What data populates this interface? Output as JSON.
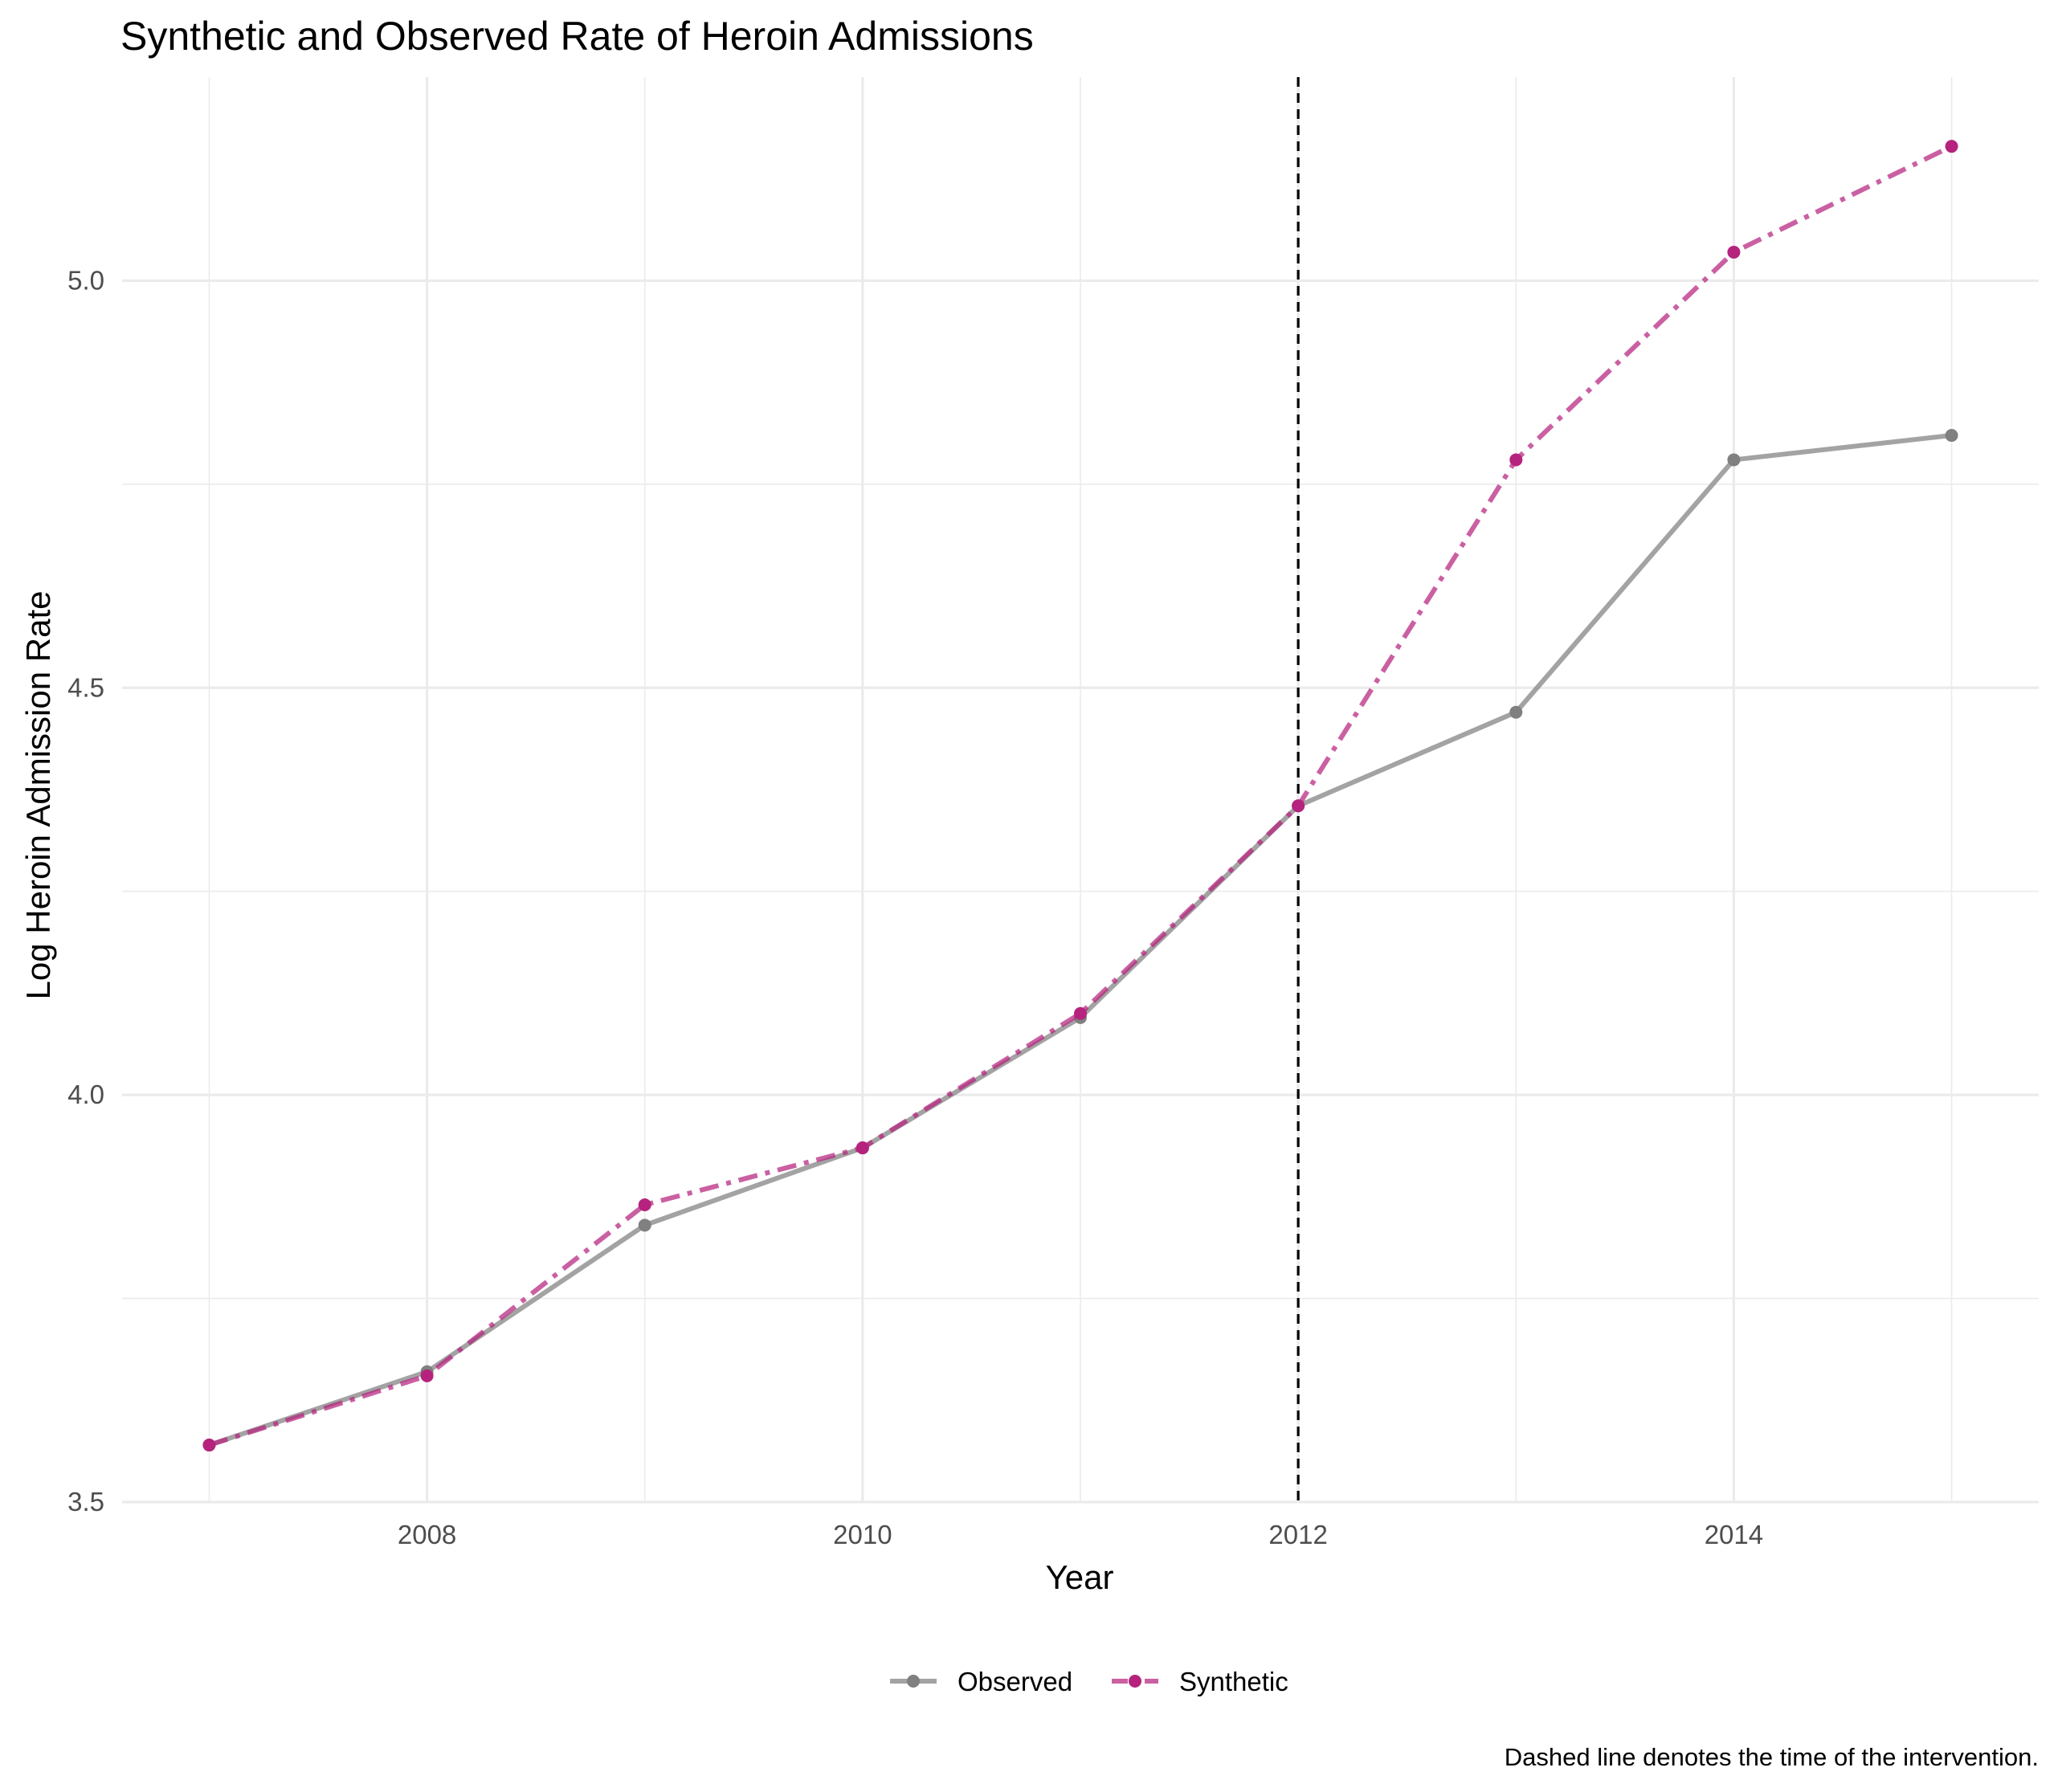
{
  "chart_data": {
    "type": "line",
    "title": "Synthetic and Observed Rate of Heroin Admissions",
    "xlabel": "Year",
    "ylabel": "Log Heroin Admission Rate",
    "caption": "Dashed line denotes the time of the intervention.",
    "x": [
      2007,
      2008,
      2009,
      2010,
      2011,
      2012,
      2013,
      2014,
      2015
    ],
    "xlim": [
      2006.6,
      2015.4
    ],
    "ylim": [
      3.5,
      5.25
    ],
    "x_ticks": [
      2008,
      2010,
      2012,
      2014
    ],
    "x_tick_labels": [
      "2008",
      "2010",
      "2012",
      "2014"
    ],
    "y_ticks": [
      3.5,
      4.0,
      4.5,
      5.0
    ],
    "y_tick_labels": [
      "3.5",
      "4.0",
      "4.5",
      "5.0"
    ],
    "grid": true,
    "intervention_x": 2012,
    "legend_position": "bottom",
    "series": [
      {
        "name": "Observed",
        "color": "#808080",
        "line_style": "solid",
        "values": [
          3.57,
          3.66,
          3.84,
          3.935,
          4.095,
          4.355,
          4.47,
          4.78,
          4.81
        ]
      },
      {
        "name": "Synthetic",
        "color": "#b5237e",
        "line_style": "dotdash",
        "values": [
          3.57,
          3.655,
          3.865,
          3.935,
          4.1,
          4.355,
          4.78,
          5.035,
          5.165
        ]
      }
    ]
  }
}
